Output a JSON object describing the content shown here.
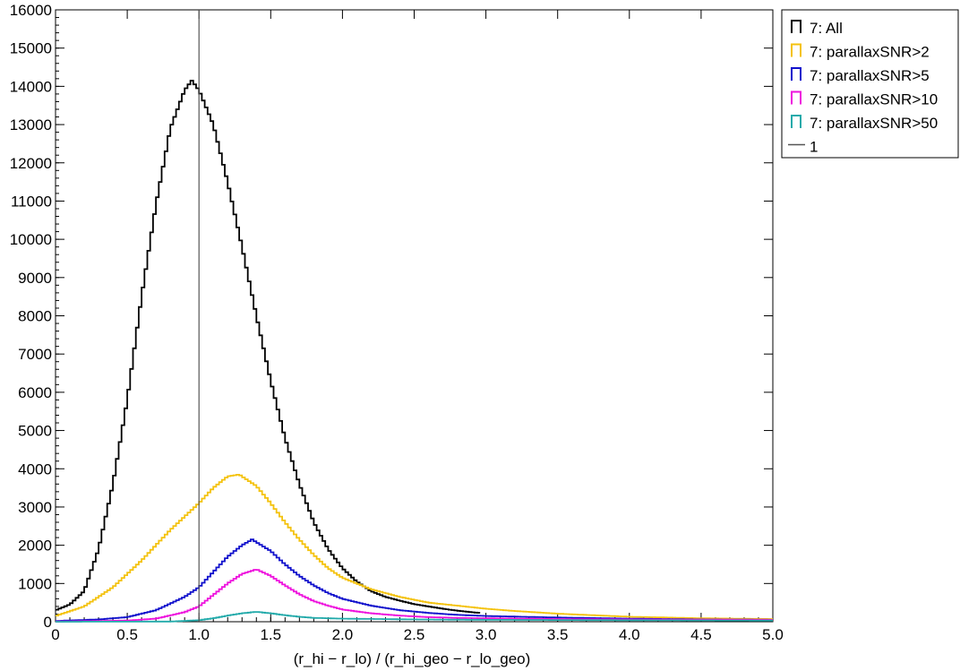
{
  "chart_data": {
    "type": "histogram",
    "xlabel": "(r_hi − r_lo)  / (r_hi_geo − r_lo_geo)",
    "ylabel": "",
    "xlim": [
      0,
      5.0
    ],
    "ylim": [
      0,
      16000
    ],
    "x_ticks": [
      "0",
      "0.5",
      "1.0",
      "1.5",
      "2.0",
      "2.5",
      "3.0",
      "3.5",
      "4.0",
      "4.5",
      "5.0"
    ],
    "y_ticks": [
      "0",
      "1000",
      "2000",
      "3000",
      "4000",
      "5000",
      "6000",
      "7000",
      "8000",
      "9000",
      "10000",
      "11000",
      "12000",
      "13000",
      "14000",
      "15000",
      "16000"
    ],
    "grid": false,
    "legend_position": "outside-top-right",
    "vline": {
      "x": 1.0,
      "label": "1",
      "color": "#555555"
    },
    "series": [
      {
        "name": "7: All",
        "color": "#000000",
        "points": [
          [
            0,
            300
          ],
          [
            0.1,
            450
          ],
          [
            0.2,
            800
          ],
          [
            0.3,
            1900
          ],
          [
            0.4,
            3600
          ],
          [
            0.5,
            5800
          ],
          [
            0.6,
            8500
          ],
          [
            0.7,
            10900
          ],
          [
            0.8,
            12900
          ],
          [
            0.9,
            13900
          ],
          [
            0.95,
            14150
          ],
          [
            1.0,
            13900
          ],
          [
            1.1,
            13000
          ],
          [
            1.2,
            11500
          ],
          [
            1.3,
            9800
          ],
          [
            1.4,
            8000
          ],
          [
            1.5,
            6300
          ],
          [
            1.6,
            4800
          ],
          [
            1.7,
            3600
          ],
          [
            1.8,
            2600
          ],
          [
            1.9,
            1900
          ],
          [
            2.0,
            1400
          ],
          [
            2.1,
            1050
          ],
          [
            2.2,
            800
          ],
          [
            2.3,
            650
          ],
          [
            2.4,
            550
          ],
          [
            2.5,
            460
          ],
          [
            2.6,
            400
          ],
          [
            2.7,
            340
          ],
          [
            2.8,
            290
          ],
          [
            2.9,
            250
          ],
          [
            2.96,
            230
          ]
        ]
      },
      {
        "name": "7: parallaxSNR>2",
        "color": "#f4c20d",
        "points": [
          [
            0,
            150
          ],
          [
            0.2,
            400
          ],
          [
            0.4,
            900
          ],
          [
            0.6,
            1600
          ],
          [
            0.8,
            2400
          ],
          [
            1.0,
            3100
          ],
          [
            1.1,
            3500
          ],
          [
            1.2,
            3800
          ],
          [
            1.28,
            3850
          ],
          [
            1.4,
            3550
          ],
          [
            1.5,
            3100
          ],
          [
            1.6,
            2600
          ],
          [
            1.7,
            2150
          ],
          [
            1.8,
            1750
          ],
          [
            1.9,
            1400
          ],
          [
            2.0,
            1150
          ],
          [
            2.2,
            850
          ],
          [
            2.4,
            650
          ],
          [
            2.6,
            500
          ],
          [
            2.8,
            420
          ],
          [
            3.0,
            340
          ],
          [
            3.2,
            280
          ],
          [
            3.5,
            210
          ],
          [
            4.0,
            130
          ],
          [
            4.5,
            90
          ],
          [
            5.0,
            70
          ]
        ]
      },
      {
        "name": "7: parallaxSNR>5",
        "color": "#1010cc",
        "points": [
          [
            0,
            20
          ],
          [
            0.3,
            60
          ],
          [
            0.5,
            120
          ],
          [
            0.7,
            300
          ],
          [
            0.9,
            650
          ],
          [
            1.0,
            900
          ],
          [
            1.1,
            1300
          ],
          [
            1.2,
            1700
          ],
          [
            1.3,
            2000
          ],
          [
            1.37,
            2150
          ],
          [
            1.5,
            1850
          ],
          [
            1.6,
            1500
          ],
          [
            1.7,
            1200
          ],
          [
            1.8,
            950
          ],
          [
            1.9,
            750
          ],
          [
            2.0,
            600
          ],
          [
            2.2,
            420
          ],
          [
            2.4,
            300
          ],
          [
            2.6,
            230
          ],
          [
            2.8,
            180
          ],
          [
            3.0,
            150
          ],
          [
            3.5,
            110
          ],
          [
            4.0,
            80
          ],
          [
            4.5,
            60
          ],
          [
            5.0,
            50
          ]
        ]
      },
      {
        "name": "7: parallaxSNR>10",
        "color": "#ee11dd",
        "points": [
          [
            0,
            5
          ],
          [
            0.5,
            30
          ],
          [
            0.7,
            80
          ],
          [
            0.9,
            250
          ],
          [
            1.0,
            400
          ],
          [
            1.1,
            700
          ],
          [
            1.2,
            1000
          ],
          [
            1.3,
            1250
          ],
          [
            1.4,
            1370
          ],
          [
            1.5,
            1200
          ],
          [
            1.6,
            950
          ],
          [
            1.7,
            720
          ],
          [
            1.8,
            540
          ],
          [
            1.9,
            420
          ],
          [
            2.0,
            320
          ],
          [
            2.2,
            220
          ],
          [
            2.4,
            160
          ],
          [
            2.6,
            120
          ],
          [
            2.8,
            100
          ],
          [
            3.0,
            90
          ],
          [
            3.5,
            70
          ],
          [
            4.0,
            60
          ],
          [
            5.0,
            50
          ]
        ]
      },
      {
        "name": "7: parallaxSNR>50",
        "color": "#22aaaa",
        "points": [
          [
            0,
            0
          ],
          [
            0.8,
            5
          ],
          [
            1.0,
            40
          ],
          [
            1.1,
            90
          ],
          [
            1.2,
            160
          ],
          [
            1.3,
            220
          ],
          [
            1.4,
            260
          ],
          [
            1.5,
            220
          ],
          [
            1.6,
            170
          ],
          [
            1.7,
            130
          ],
          [
            1.8,
            100
          ],
          [
            2.0,
            80
          ],
          [
            2.5,
            60
          ],
          [
            3.0,
            50
          ],
          [
            4.0,
            40
          ],
          [
            5.0,
            30
          ]
        ]
      }
    ]
  }
}
